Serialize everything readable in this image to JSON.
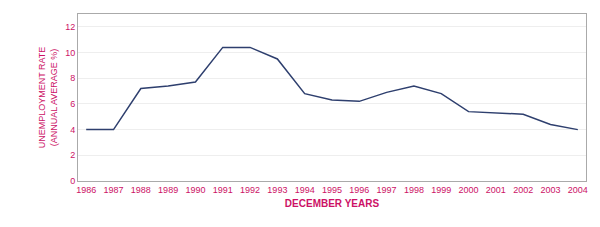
{
  "chart_data": {
    "type": "line",
    "x": [
      1986,
      1987,
      1988,
      1989,
      1990,
      1991,
      1992,
      1993,
      1994,
      1995,
      1996,
      1997,
      1998,
      1999,
      2000,
      2001,
      2002,
      2003,
      2004
    ],
    "values": [
      4.0,
      4.0,
      7.2,
      7.4,
      7.7,
      10.4,
      10.4,
      9.5,
      6.8,
      6.3,
      6.2,
      6.9,
      7.4,
      6.8,
      5.4,
      5.3,
      5.2,
      4.4,
      4.0
    ],
    "color": "#2e3f6e",
    "ylabel": "UNEMPLOYMENT RATE\n(ANNUAL AVERAGE %)",
    "xlabel": "DECEMBER YEARS",
    "xlim": [
      1985.7,
      2004.3
    ],
    "xticks": [
      1986,
      1987,
      1988,
      1989,
      1990,
      1991,
      1992,
      1993,
      1994,
      1995,
      1996,
      1997,
      1998,
      1999,
      2000,
      2001,
      2002,
      2003,
      2004
    ],
    "ylim": [
      0,
      13
    ],
    "yticks": [
      0,
      2,
      4,
      6,
      8,
      10,
      12
    ],
    "grid": true
  }
}
